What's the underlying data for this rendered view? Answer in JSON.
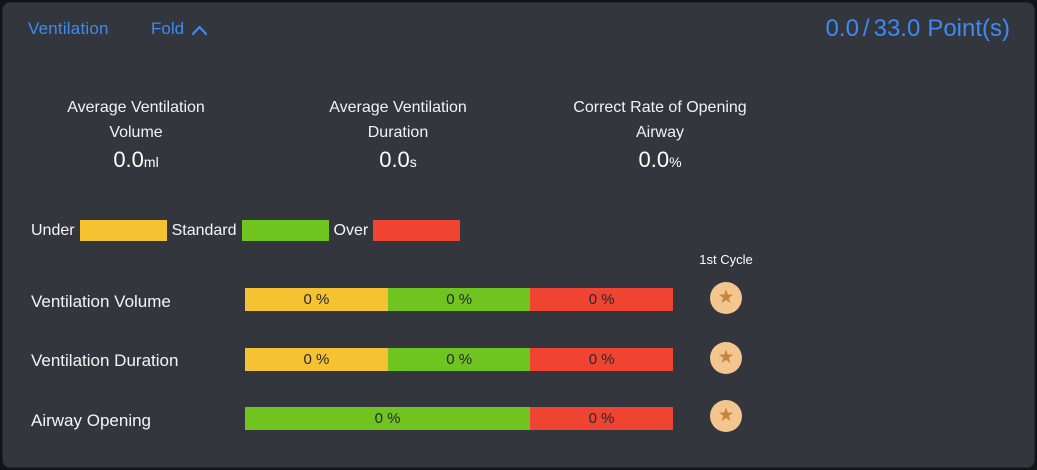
{
  "header": {
    "title": "Ventilation",
    "fold_label": "Fold",
    "fold_icon": "chevron-up-icon",
    "score": {
      "current": "0.0",
      "separator": "/",
      "total": "33.0",
      "unit": "Point(s)"
    }
  },
  "stats": [
    {
      "label_line1": "Average Ventilation",
      "label_line2": "Volume",
      "value": "0.0",
      "unit": "ml"
    },
    {
      "label_line1": "Average Ventilation",
      "label_line2": "Duration",
      "value": "0.0",
      "unit": "s"
    },
    {
      "label_line1": "Correct Rate of Opening",
      "label_line2": "Airway",
      "value": "0.0",
      "unit": "%"
    }
  ],
  "legend": [
    {
      "label": "Under",
      "type": "under",
      "color": "#f5c332"
    },
    {
      "label": "Standard",
      "type": "standard",
      "color": "#70c41f"
    },
    {
      "label": "Over",
      "type": "over",
      "color": "#f04433"
    }
  ],
  "cycle_header": "1st Cycle",
  "rows": [
    {
      "label": "Ventilation Volume",
      "segments": [
        {
          "type": "under",
          "pct": 33.4,
          "label": "0 %"
        },
        {
          "type": "standard",
          "pct": 33.3,
          "label": "0 %"
        },
        {
          "type": "over",
          "pct": 33.3,
          "label": "0 %"
        }
      ],
      "badge_icon": "star-icon"
    },
    {
      "label": "Ventilation Duration",
      "segments": [
        {
          "type": "under",
          "pct": 33.4,
          "label": "0 %"
        },
        {
          "type": "standard",
          "pct": 33.3,
          "label": "0 %"
        },
        {
          "type": "over",
          "pct": 33.3,
          "label": "0 %"
        }
      ],
      "badge_icon": "star-icon"
    },
    {
      "label": "Airway Opening",
      "segments": [
        {
          "type": "standard",
          "pct": 66.6,
          "label": "0 %"
        },
        {
          "type": "over",
          "pct": 33.4,
          "label": "0 %"
        }
      ],
      "badge_icon": "star-icon"
    }
  ],
  "colors": {
    "accent_blue": "#3d8bf2",
    "under": "#f5c332",
    "standard": "#70c41f",
    "over": "#f04433",
    "badge_bg": "#f3c690",
    "badge_star": "#c6853e",
    "panel_bg": "#33363c",
    "bar_text": "#26282b"
  },
  "glyphs": {
    "star": "★"
  }
}
